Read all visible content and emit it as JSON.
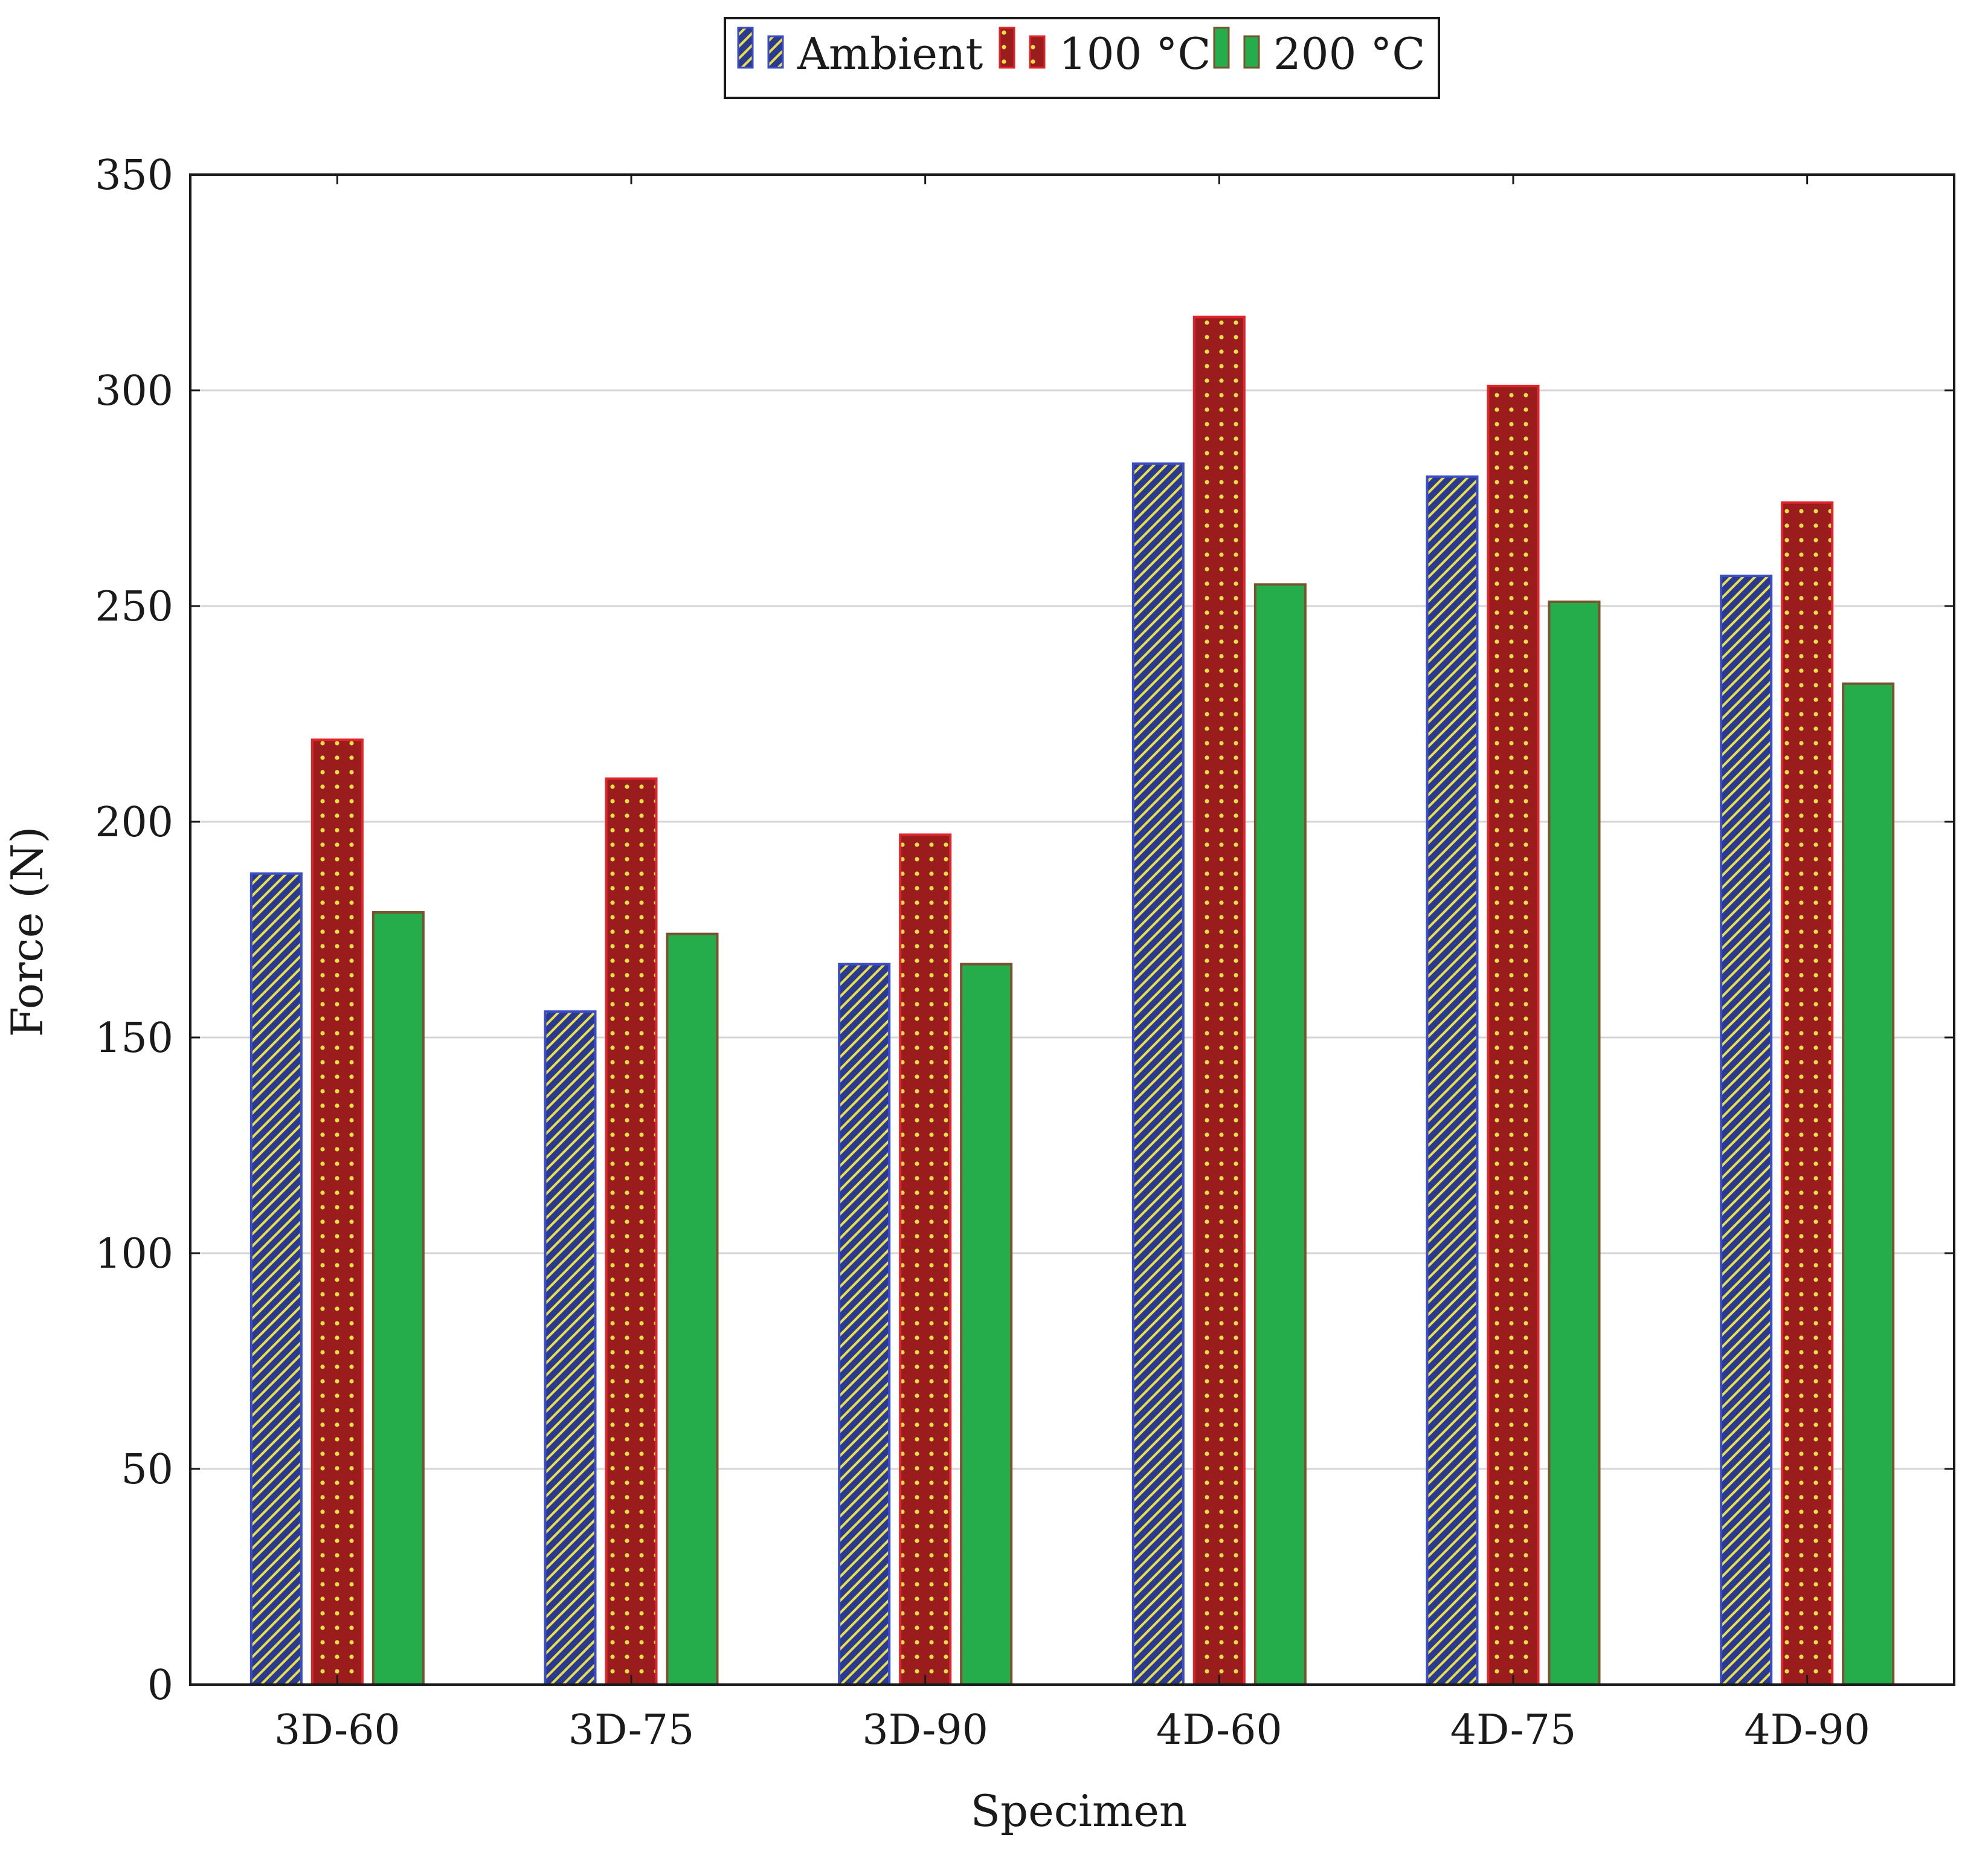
{
  "chart_data": {
    "type": "bar",
    "title": "",
    "xlabel": "Specimen",
    "ylabel": "Force (N)",
    "ylim": [
      0,
      350
    ],
    "yticks": [
      0,
      50,
      100,
      150,
      200,
      250,
      300,
      350
    ],
    "grid": "horizontal",
    "legend_position": "top-center",
    "categories": [
      "3D-60",
      "3D-75",
      "3D-90",
      "4D-60",
      "4D-75",
      "4D-90"
    ],
    "series": [
      {
        "name": "Ambient",
        "values": [
          188,
          156,
          167,
          283,
          280,
          257
        ],
        "fill_color": "#2b3a8f",
        "stroke_color": "#3a4cc7",
        "pattern": "diagonal-lines",
        "pattern_color": "#e6e04a"
      },
      {
        "name": "100 °C",
        "values": [
          219,
          210,
          197,
          317,
          301,
          274
        ],
        "fill_color": "#9b1c1c",
        "stroke_color": "#e0262b",
        "pattern": "dots",
        "pattern_color": "#e6e04a"
      },
      {
        "name": "200 °C",
        "values": [
          179,
          174,
          167,
          255,
          251,
          232
        ],
        "fill_color": "#24ad4a",
        "stroke_color": "#7a5230",
        "pattern": "solid",
        "pattern_color": ""
      }
    ]
  }
}
